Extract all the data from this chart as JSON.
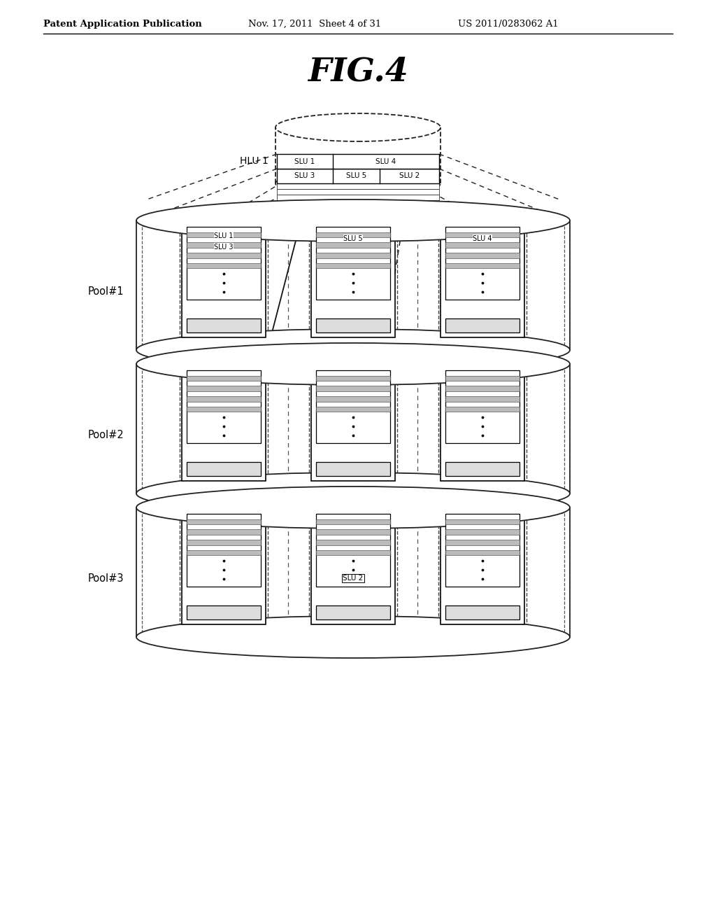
{
  "bg_color": "#ffffff",
  "header_left": "Patent Application Publication",
  "header_mid": "Nov. 17, 2011  Sheet 4 of 31",
  "header_right": "US 2011/0283062 A1",
  "fig_title": "FIG.4",
  "pool_labels": [
    "Pool#1",
    "Pool#2",
    "Pool#3"
  ]
}
